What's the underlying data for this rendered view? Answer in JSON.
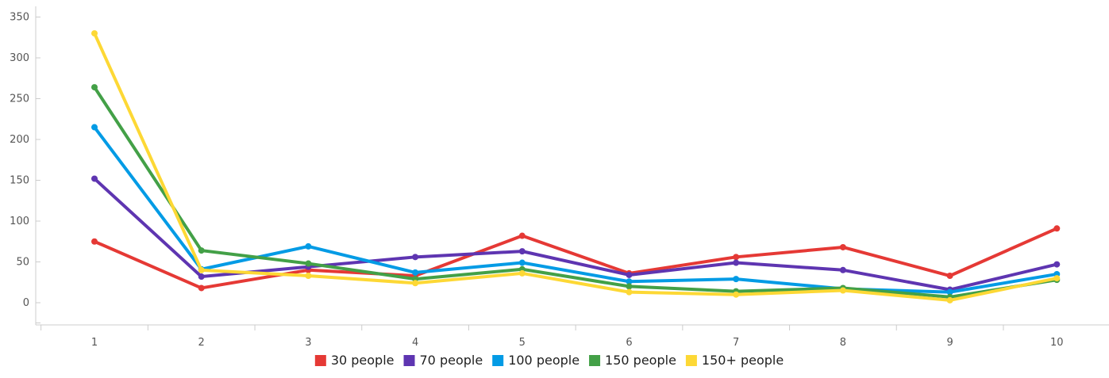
{
  "chart_data": {
    "type": "line",
    "title": "",
    "xlabel": "",
    "ylabel": "",
    "x": [
      1,
      2,
      3,
      4,
      5,
      6,
      7,
      8,
      9,
      10
    ],
    "ylim": [
      -30,
      360
    ],
    "yticks": [
      0,
      50,
      100,
      150,
      200,
      250,
      300,
      350
    ],
    "grid": false,
    "legend_position": "bottom",
    "series": [
      {
        "name": "30 people",
        "color": "#e53935",
        "values": [
          75,
          18,
          40,
          33,
          82,
          36,
          56,
          68,
          33,
          91
        ]
      },
      {
        "name": "70 people",
        "color": "#5e35b1",
        "values": [
          152,
          32,
          44,
          56,
          63,
          34,
          49,
          40,
          16,
          47
        ]
      },
      {
        "name": "100 people",
        "color": "#039be5",
        "values": [
          215,
          41,
          69,
          37,
          49,
          26,
          29,
          17,
          13,
          35
        ]
      },
      {
        "name": "150 people",
        "color": "#43a047",
        "values": [
          264,
          64,
          48,
          29,
          41,
          20,
          14,
          18,
          7,
          28
        ]
      },
      {
        "name": "150+ people",
        "color": "#fdd835",
        "values": [
          330,
          40,
          33,
          24,
          36,
          13,
          10,
          15,
          3,
          30
        ]
      }
    ]
  }
}
